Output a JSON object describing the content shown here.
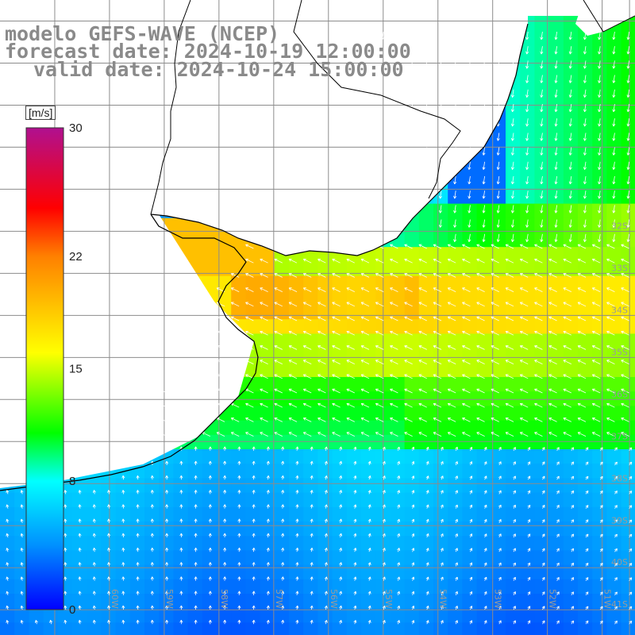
{
  "title": {
    "line1": "modelo GEFS-WAVE (NCEP)",
    "line2": "forecast date: 2024-10-19 12:00:00",
    "line3": "valid date: 2024-10-24 15:00:00"
  },
  "colorbar": {
    "units": "[m/s]",
    "ticks": [
      {
        "value": 30,
        "label": "30"
      },
      {
        "value": 22,
        "label": "22"
      },
      {
        "value": 15,
        "label": "15"
      },
      {
        "value": 8,
        "label": "8"
      },
      {
        "value": 0,
        "label": "0"
      }
    ],
    "range": [
      0,
      30
    ]
  },
  "map": {
    "lon_range": [
      -62,
      -50.4
    ],
    "lat_range": [
      -26.5,
      -41.6
    ],
    "lat_labels": [
      {
        "lat": -32,
        "label": "32S"
      },
      {
        "lat": -33,
        "label": "33S"
      },
      {
        "lat": -34,
        "label": "34S"
      },
      {
        "lat": -35,
        "label": "35S"
      },
      {
        "lat": -36,
        "label": "36S"
      },
      {
        "lat": -37,
        "label": "37S"
      },
      {
        "lat": -38,
        "label": "38S"
      },
      {
        "lat": -39,
        "label": "39S"
      },
      {
        "lat": -40,
        "label": "40S"
      },
      {
        "lat": -41,
        "label": "41S"
      }
    ],
    "lon_labels": [
      {
        "lon": -61,
        "label": "61W"
      },
      {
        "lon": -60,
        "label": "60W"
      },
      {
        "lon": -59,
        "label": "59W"
      },
      {
        "lon": -58,
        "label": "58W"
      },
      {
        "lon": -57,
        "label": "57W"
      },
      {
        "lon": -56,
        "label": "56W"
      },
      {
        "lon": -55,
        "label": "55W"
      },
      {
        "lon": -54,
        "label": "54W"
      },
      {
        "lon": -53,
        "label": "53W"
      },
      {
        "lon": -52,
        "label": "52W"
      },
      {
        "lon": -51,
        "label": "51W"
      }
    ],
    "field_palette": [
      "#0000ff",
      "#0090ff",
      "#00ffff",
      "#00ff00",
      "#ffff00",
      "#ff8000",
      "#ff0000",
      "#b01090"
    ],
    "land_color": "#ffffff",
    "coastline_color": "#000000",
    "grid_color": "#8c8c8c",
    "arrow_color": "#ffffff"
  }
}
